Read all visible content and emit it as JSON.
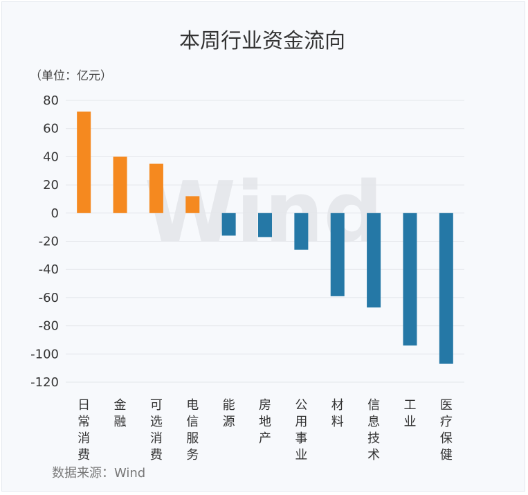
{
  "chart_data": {
    "type": "bar",
    "title": "本周行业资金流向",
    "unit_label": "（单位：亿元）",
    "source": "数据来源：Wind",
    "watermark": "Wind",
    "categories": [
      "日常消费",
      "金融",
      "可选消费",
      "电信服务",
      "能源",
      "房地产",
      "公用事业",
      "材料",
      "信息技术",
      "工业",
      "医疗保健"
    ],
    "values": [
      72,
      40,
      35,
      12,
      -16,
      -17,
      -26,
      -59,
      -67,
      -94,
      -107
    ],
    "ylim": [
      -120,
      80
    ],
    "yticks": [
      80,
      60,
      40,
      20,
      0,
      -20,
      -40,
      -60,
      -80,
      -100,
      -120
    ],
    "grid": true,
    "legend": "none",
    "colors": {
      "positive": "#f5891f",
      "negative": "#2578a6"
    }
  }
}
